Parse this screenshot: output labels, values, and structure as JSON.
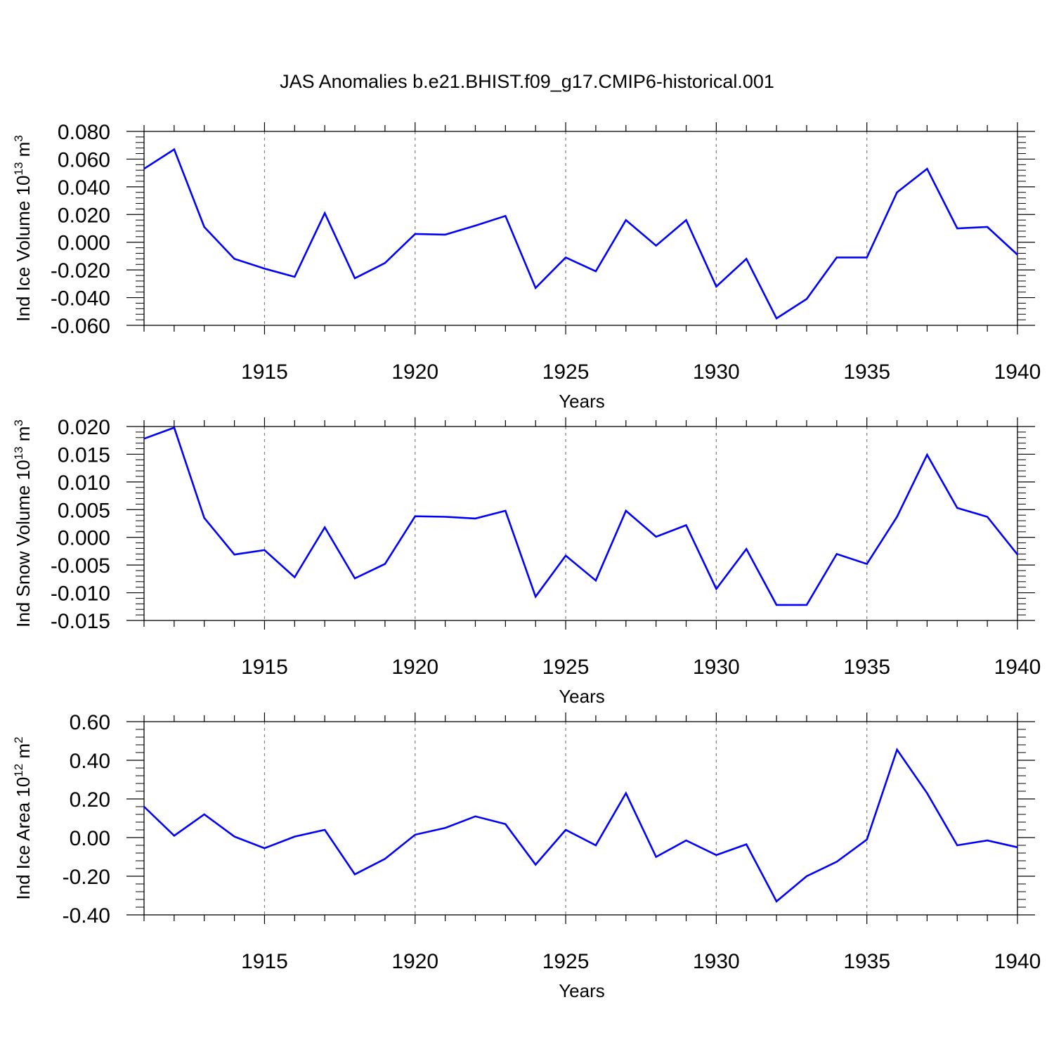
{
  "title": "JAS Anomalies b.e21.BHIST.f09_g17.CMIP6-historical.001",
  "colors": {
    "line": "#0000ff",
    "axis": "#000000",
    "grid": "#7f7f7f"
  },
  "chart_data": [
    {
      "type": "line",
      "ylabel": {
        "text": "Ind Ice Volume 10",
        "exp": "13",
        "unit": " m",
        "unit_exp": "3"
      },
      "xlabel": "Years",
      "xlim": [
        1911,
        1940
      ],
      "ylim": [
        -0.06,
        0.08
      ],
      "grid": true,
      "x_ticks": [
        1915,
        1920,
        1925,
        1930,
        1935,
        1940
      ],
      "x_tick_labels": [
        "1915",
        "1920",
        "1925",
        "1930",
        "1935",
        "1940"
      ],
      "y_ticks": [
        -0.06,
        -0.04,
        -0.02,
        0.0,
        0.02,
        0.04,
        0.06,
        0.08
      ],
      "y_tick_labels": [
        "-0.060",
        "-0.040",
        "-0.020",
        "0.000",
        "0.020",
        "0.040",
        "0.060",
        "0.080"
      ],
      "x": [
        1911,
        1912,
        1913,
        1914,
        1915,
        1916,
        1917,
        1918,
        1919,
        1920,
        1921,
        1922,
        1923,
        1924,
        1925,
        1926,
        1927,
        1928,
        1929,
        1930,
        1931,
        1932,
        1933,
        1934,
        1935,
        1936,
        1937,
        1938,
        1939,
        1940
      ],
      "values": [
        0.053,
        0.067,
        0.011,
        -0.012,
        -0.019,
        -0.025,
        0.021,
        -0.026,
        -0.015,
        0.006,
        0.0055,
        0.012,
        0.019,
        -0.033,
        -0.011,
        -0.021,
        0.016,
        -0.0025,
        0.016,
        -0.032,
        -0.012,
        -0.055,
        -0.041,
        -0.011,
        -0.011,
        0.036,
        0.053,
        0.01,
        0.011,
        -0.009
      ]
    },
    {
      "type": "line",
      "ylabel": {
        "text": "Ind Snow Volume 10",
        "exp": "13",
        "unit": " m",
        "unit_exp": "3"
      },
      "xlabel": "Years",
      "xlim": [
        1911,
        1940
      ],
      "ylim": [
        -0.015,
        0.02
      ],
      "grid": true,
      "x_ticks": [
        1915,
        1920,
        1925,
        1930,
        1935,
        1940
      ],
      "x_tick_labels": [
        "1915",
        "1920",
        "1925",
        "1930",
        "1935",
        "1940"
      ],
      "y_ticks": [
        -0.015,
        -0.01,
        -0.005,
        0.0,
        0.005,
        0.01,
        0.015,
        0.02
      ],
      "y_tick_labels": [
        "-0.015",
        "-0.010",
        "-0.005",
        "0.000",
        "0.005",
        "0.010",
        "0.015",
        "0.020"
      ],
      "x": [
        1911,
        1912,
        1913,
        1914,
        1915,
        1916,
        1917,
        1918,
        1919,
        1920,
        1921,
        1922,
        1923,
        1924,
        1925,
        1926,
        1927,
        1928,
        1929,
        1930,
        1931,
        1932,
        1933,
        1934,
        1935,
        1936,
        1937,
        1938,
        1939,
        1940
      ],
      "values": [
        0.0178,
        0.0198,
        0.0035,
        -0.0031,
        -0.0023,
        -0.0072,
        0.0018,
        -0.0074,
        -0.0048,
        0.0038,
        0.0037,
        0.0034,
        0.0048,
        -0.0107,
        -0.0033,
        -0.0078,
        0.0048,
        0.0001,
        0.0022,
        -0.0093,
        -0.0021,
        -0.0122,
        -0.0122,
        -0.003,
        -0.0048,
        0.0037,
        0.0149,
        0.0053,
        0.0037,
        -0.0031
      ]
    },
    {
      "type": "line",
      "ylabel": {
        "text": "Ind Ice Area 10",
        "exp": "12",
        "unit": " m",
        "unit_exp": "2"
      },
      "xlabel": "Years",
      "xlim": [
        1911,
        1940
      ],
      "ylim": [
        -0.4,
        0.6
      ],
      "grid": true,
      "x_ticks": [
        1915,
        1920,
        1925,
        1930,
        1935,
        1940
      ],
      "x_tick_labels": [
        "1915",
        "1920",
        "1925",
        "1930",
        "1935",
        "1940"
      ],
      "y_ticks": [
        -0.4,
        -0.2,
        0.0,
        0.2,
        0.4,
        0.6
      ],
      "y_tick_labels": [
        "-0.40",
        "-0.20",
        "0.00",
        "0.20",
        "0.40",
        "0.60"
      ],
      "x": [
        1911,
        1912,
        1913,
        1914,
        1915,
        1916,
        1917,
        1918,
        1919,
        1920,
        1921,
        1922,
        1923,
        1924,
        1925,
        1926,
        1927,
        1928,
        1929,
        1930,
        1931,
        1932,
        1933,
        1934,
        1935,
        1936,
        1937,
        1938,
        1939,
        1940
      ],
      "values": [
        0.16,
        0.01,
        0.12,
        0.005,
        -0.055,
        0.005,
        0.04,
        -0.19,
        -0.11,
        0.015,
        0.05,
        0.11,
        0.07,
        -0.14,
        0.04,
        -0.04,
        0.23,
        -0.1,
        -0.015,
        -0.09,
        -0.035,
        -0.33,
        -0.2,
        -0.125,
        -0.01,
        0.455,
        0.23,
        -0.04,
        -0.015,
        -0.05
      ]
    }
  ]
}
